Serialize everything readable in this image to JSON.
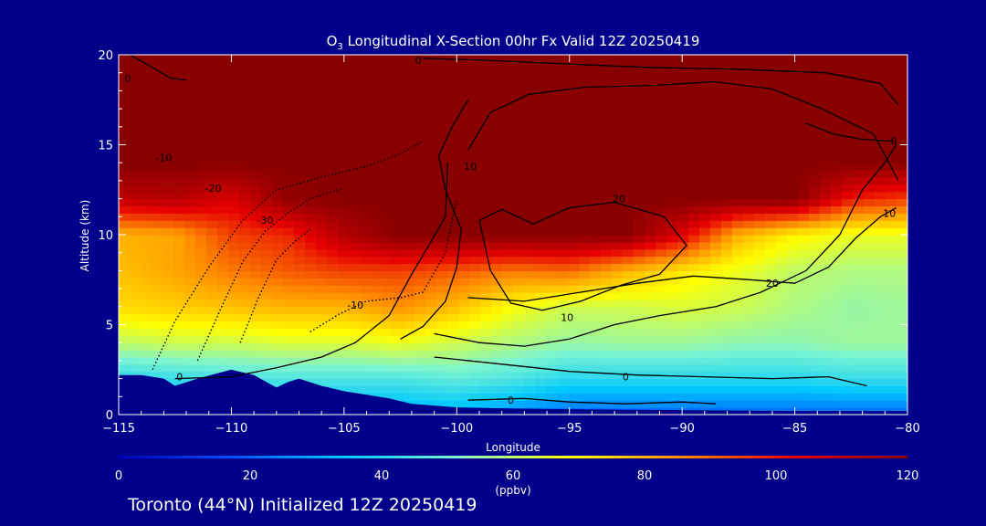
{
  "chart_data": {
    "type": "heatmap",
    "title": {
      "chem_base": "O",
      "chem_sub": "3",
      "text": " Longitudinal X-Section 00hr  Fx Valid 12Z 20250419"
    },
    "xlabel": "Longitude",
    "ylabel": "Altitude (km)",
    "xlim": [
      -115,
      -80
    ],
    "ylim": [
      0,
      20
    ],
    "x_ticks": [
      -115,
      -110,
      -105,
      -100,
      -95,
      -90,
      -85,
      -80
    ],
    "x_tick_labels": [
      "−115",
      "−110",
      "−105",
      "−100",
      "−95",
      "−90",
      "−85",
      "−80"
    ],
    "y_ticks": [
      0,
      5,
      10,
      15,
      20
    ],
    "y_tick_labels": [
      "0",
      "5",
      "10",
      "15",
      "20"
    ],
    "colorbar": {
      "min": 0,
      "max": 120,
      "ticks": [
        0,
        20,
        40,
        60,
        80,
        100,
        120
      ],
      "tick_labels": [
        "0",
        "20",
        "40",
        "60",
        "80",
        "100",
        "120"
      ],
      "unit_label": "(ppbv)",
      "colors": [
        "#0000b4",
        "#0050ff",
        "#00c8ff",
        "#7cf5d0",
        "#ffff00",
        "#ff8c00",
        "#e60000",
        "#880000"
      ]
    },
    "o3_field": {
      "x": [
        -115,
        -112.5,
        -110,
        -107.5,
        -105,
        -102.5,
        -100,
        -97.5,
        -95,
        -92.5,
        -90,
        -87.5,
        -85,
        -82.5,
        -80
      ],
      "z": [
        0,
        2,
        4,
        6,
        8,
        10,
        12,
        14,
        16,
        18,
        20
      ],
      "values": [
        [
          30,
          30,
          30,
          30,
          30,
          30,
          30,
          25,
          20,
          20,
          20,
          20,
          20,
          20,
          20
        ],
        [
          40,
          42,
          44,
          45,
          45,
          45,
          48,
          45,
          40,
          40,
          40,
          40,
          40,
          42,
          42
        ],
        [
          60,
          62,
          62,
          64,
          64,
          66,
          62,
          58,
          55,
          56,
          56,
          54,
          54,
          56,
          56
        ],
        [
          74,
          76,
          78,
          80,
          80,
          85,
          78,
          68,
          62,
          62,
          64,
          62,
          58,
          55,
          56
        ],
        [
          78,
          82,
          88,
          92,
          95,
          95,
          92,
          88,
          90,
          80,
          72,
          66,
          60,
          58,
          58
        ],
        [
          80,
          82,
          95,
          98,
          112,
          120,
          120,
          120,
          120,
          120,
          105,
          80,
          70,
          66,
          66
        ],
        [
          110,
          112,
          105,
          118,
          120,
          120,
          120,
          120,
          120,
          120,
          120,
          120,
          120,
          100,
          95
        ],
        [
          120,
          120,
          120,
          120,
          120,
          120,
          120,
          120,
          120,
          120,
          120,
          120,
          120,
          120,
          120
        ],
        [
          120,
          120,
          120,
          120,
          120,
          120,
          120,
          120,
          120,
          120,
          120,
          120,
          120,
          120,
          120
        ],
        [
          120,
          120,
          120,
          120,
          120,
          120,
          120,
          120,
          120,
          120,
          120,
          120,
          120,
          120,
          120
        ],
        [
          120,
          120,
          120,
          120,
          120,
          120,
          120,
          120,
          120,
          120,
          120,
          120,
          120,
          120,
          120
        ]
      ]
    },
    "terrain": {
      "lon": [
        -115,
        -114,
        -113,
        -112.5,
        -111.5,
        -110,
        -109,
        -108,
        -107.5,
        -107,
        -106,
        -105,
        -104,
        -103,
        -102,
        -101,
        -100,
        -98,
        -95,
        -90,
        -85,
        -80
      ],
      "alt": [
        2.2,
        2.2,
        2.0,
        1.6,
        2.0,
        2.5,
        2.2,
        1.5,
        1.8,
        2.0,
        1.6,
        1.3,
        1.1,
        0.9,
        0.6,
        0.5,
        0.4,
        0.35,
        0.3,
        0.25,
        0.2,
        0.2
      ]
    },
    "contours": [
      {
        "label": "-10",
        "lon": [
          -113.5,
          -112.5,
          -111,
          -109.5,
          -108,
          -106,
          -104,
          -102.5,
          -101.5
        ],
        "alt": [
          2.5,
          5.2,
          8.2,
          10.8,
          12.5,
          13.2,
          13.8,
          14.5,
          15.2
        ],
        "label_at": [
          -113,
          14.3
        ]
      },
      {
        "label": "-20",
        "lon": [
          -111.5,
          -110.5,
          -109.5,
          -108.5,
          -107.5,
          -106.5,
          -105
        ],
        "alt": [
          3.0,
          5.8,
          8.5,
          10.2,
          11.2,
          12.0,
          12.6
        ],
        "label_at": [
          -110.8,
          12.6
        ]
      },
      {
        "label": "-30",
        "lon": [
          -109.6,
          -108.8,
          -108.0,
          -107.2,
          -106.5
        ],
        "alt": [
          4.0,
          6.5,
          8.6,
          9.6,
          10.3
        ],
        "label_at": [
          -108.5,
          10.8
        ]
      },
      {
        "label": "-10",
        "lon": [
          -106.5,
          -105.2,
          -104,
          -102.5,
          -101.5,
          -100.5,
          -100
        ],
        "alt": [
          4.6,
          5.6,
          6.3,
          6.5,
          6.8,
          9.0,
          12.0
        ],
        "label_at": [
          -104.5,
          6.1
        ]
      },
      {
        "label": "0",
        "lon": [
          -112.5,
          -110,
          -108,
          -106,
          -104.5,
          -103,
          -102,
          -101.2,
          -100.5,
          -100.4
        ],
        "alt": [
          2.0,
          2.1,
          2.6,
          3.2,
          4.0,
          5.5,
          7.8,
          9.5,
          11.0,
          14.0
        ],
        "label_at": [
          -112.3,
          2.1
        ]
      },
      {
        "label": "10",
        "lon": [
          -102.5,
          -101.5,
          -100.5,
          -100.0,
          -99.8,
          -100.5,
          -100.8,
          -100.2,
          -99.5
        ],
        "alt": [
          4.2,
          4.9,
          6.3,
          8.2,
          10.3,
          12.5,
          14.4,
          16.0,
          17.5
        ],
        "label_at": [
          -99.4,
          13.8
        ]
      },
      {
        "label": "20",
        "lon": [
          -99.0,
          -98.5,
          -97.6,
          -96.2,
          -94.5,
          -92.7,
          -91.0,
          -89.8,
          -90.8,
          -93.0,
          -95.0,
          -96.6,
          -98.0,
          -99.0
        ],
        "alt": [
          10.8,
          8.0,
          6.2,
          5.8,
          6.3,
          7.2,
          7.8,
          9.4,
          11.0,
          11.8,
          11.5,
          10.6,
          11.4,
          10.8
        ],
        "label_at": [
          -92.8,
          12.0
        ]
      },
      {
        "label": "10",
        "lon": [
          -101,
          -99,
          -97,
          -95,
          -93,
          -91,
          -88.5,
          -86.5,
          -84.5,
          -83,
          -82,
          -81,
          -80.5
        ],
        "alt": [
          4.5,
          4.0,
          3.8,
          4.2,
          5.0,
          5.5,
          6.0,
          6.8,
          8.0,
          10.0,
          12.5,
          14.0,
          15.0
        ],
        "label_at": [
          -95.1,
          5.4
        ]
      },
      {
        "label": "20",
        "lon": [
          -99.5,
          -97,
          -94.5,
          -92,
          -89.5,
          -87,
          -85,
          -83.5,
          -82.3,
          -81.2,
          -80.5
        ],
        "alt": [
          6.5,
          6.3,
          6.8,
          7.3,
          7.7,
          7.5,
          7.3,
          8.2,
          9.8,
          11.0,
          11.5
        ],
        "label_at": [
          -86.0,
          7.3
        ]
      },
      {
        "label": "0",
        "lon": [
          -101,
          -98,
          -95,
          -92,
          -89,
          -86,
          -83.5,
          -81.8
        ],
        "alt": [
          3.2,
          2.8,
          2.4,
          2.2,
          2.1,
          2.0,
          2.1,
          1.6
        ],
        "label_at": [
          -92.5,
          2.1
        ]
      },
      {
        "label": "0",
        "lon": [
          -99.5,
          -97,
          -95,
          -92.5,
          -90,
          -88.5
        ],
        "alt": [
          0.8,
          0.9,
          0.7,
          0.6,
          0.7,
          0.6
        ],
        "label_at": [
          -97.6,
          0.8
        ]
      },
      {
        "label": "10",
        "lon": [
          -99.5,
          -98.5,
          -96.8,
          -94.3,
          -91.2,
          -88.6,
          -86.0,
          -83.8,
          -81.5,
          -80.4
        ],
        "alt": [
          14.7,
          16.8,
          17.8,
          18.2,
          18.3,
          18.5,
          18.1,
          17.0,
          15.6,
          13.0
        ],
        "label_at": [
          -80.8,
          11.2
        ]
      },
      {
        "label": "0",
        "lon": [
          -101.5,
          -98.8,
          -95.3,
          -91.5,
          -87.5,
          -83.6,
          -81.2,
          -80.4
        ],
        "alt": [
          19.8,
          19.7,
          19.5,
          19.3,
          19.2,
          19.0,
          18.4,
          17.2
        ],
        "label_at": [
          -101.7,
          19.7
        ]
      },
      {
        "label": "0",
        "lon": [
          -114.5,
          -113.5,
          -112.7,
          -112.0
        ],
        "alt": [
          20.0,
          19.3,
          18.7,
          18.6
        ],
        "label_at": [
          -114.6,
          18.7
        ]
      },
      {
        "label": "0",
        "lon": [
          -84.5,
          -83.3,
          -82.0,
          -80.6
        ],
        "alt": [
          16.2,
          15.6,
          15.3,
          15.2
        ],
        "label_at": [
          -80.6,
          15.2
        ]
      }
    ],
    "legend": "colorbar bottom"
  },
  "footer": {
    "station_label": "Toronto (44°N) Initialized 12Z 20250419"
  }
}
